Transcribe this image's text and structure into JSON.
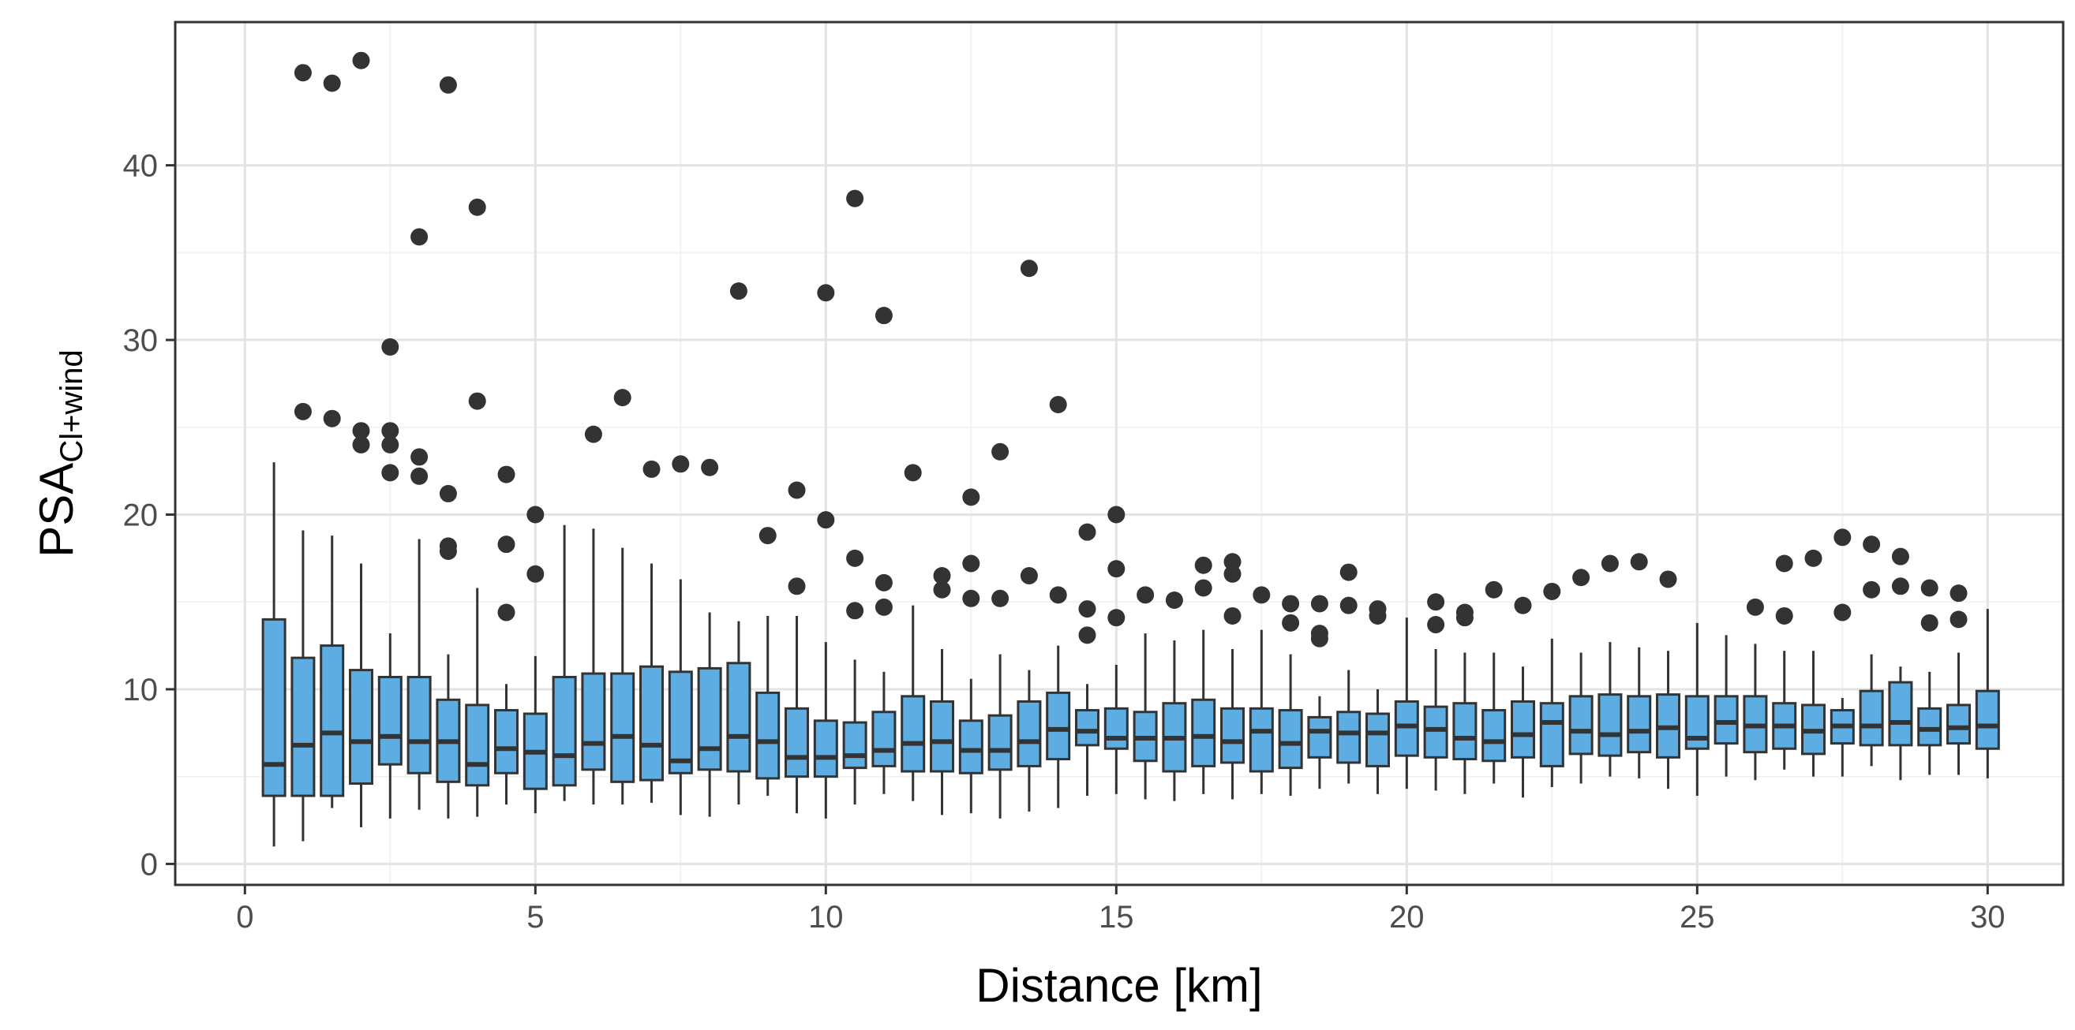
{
  "chart_data": {
    "type": "boxplot",
    "xlabel": "Distance [km]",
    "ylabel_main": "PSA",
    "ylabel_sub": "Cl+wind",
    "xlim": [
      -1.2,
      31.3
    ],
    "ylim": [
      -1.2,
      48.2
    ],
    "x_ticks": [
      0,
      5,
      10,
      15,
      20,
      25,
      30
    ],
    "y_ticks": [
      0,
      10,
      20,
      30,
      40
    ],
    "grid": true,
    "colors": {
      "box_fill": "#5dade2",
      "box_line": "#333333",
      "outlier": "#333333",
      "grid_major": "#e3e3e3",
      "grid_minor": "#f2f2f2",
      "panel_border": "#333333"
    },
    "boxes": [
      {
        "x": 0.5,
        "lo": 1.0,
        "q1": 3.9,
        "med": 5.7,
        "q3": 14.0,
        "hi": 23.0,
        "outliers": []
      },
      {
        "x": 1.0,
        "lo": 1.3,
        "q1": 3.9,
        "med": 6.8,
        "q3": 11.8,
        "hi": 19.1,
        "outliers": [
          45.3,
          25.9
        ]
      },
      {
        "x": 1.5,
        "lo": 3.2,
        "q1": 3.9,
        "med": 7.5,
        "q3": 12.5,
        "hi": 18.8,
        "outliers": [
          44.7,
          25.5
        ]
      },
      {
        "x": 2.0,
        "lo": 2.1,
        "q1": 4.6,
        "med": 7.0,
        "q3": 11.1,
        "hi": 17.2,
        "outliers": [
          46.0,
          24.8,
          24.0
        ]
      },
      {
        "x": 2.5,
        "lo": 2.6,
        "q1": 5.7,
        "med": 7.3,
        "q3": 10.7,
        "hi": 13.2,
        "outliers": [
          29.6,
          24.8,
          24.0,
          22.4
        ]
      },
      {
        "x": 3.0,
        "lo": 3.1,
        "q1": 5.2,
        "med": 7.0,
        "q3": 10.7,
        "hi": 18.6,
        "outliers": [
          35.9,
          23.3,
          22.2
        ]
      },
      {
        "x": 3.5,
        "lo": 2.6,
        "q1": 4.7,
        "med": 7.0,
        "q3": 9.4,
        "hi": 12.0,
        "outliers": [
          44.6,
          21.2,
          18.2,
          17.9
        ]
      },
      {
        "x": 4.0,
        "lo": 2.7,
        "q1": 4.5,
        "med": 5.7,
        "q3": 9.1,
        "hi": 15.8,
        "outliers": [
          37.6,
          26.5
        ]
      },
      {
        "x": 4.5,
        "lo": 3.4,
        "q1": 5.2,
        "med": 6.6,
        "q3": 8.8,
        "hi": 10.3,
        "outliers": [
          22.3,
          18.3,
          14.4
        ]
      },
      {
        "x": 5.0,
        "lo": 2.9,
        "q1": 4.3,
        "med": 6.4,
        "q3": 8.6,
        "hi": 11.9,
        "outliers": [
          20.0,
          16.6
        ]
      },
      {
        "x": 5.5,
        "lo": 3.6,
        "q1": 4.5,
        "med": 6.2,
        "q3": 10.7,
        "hi": 19.4,
        "outliers": []
      },
      {
        "x": 6.0,
        "lo": 3.4,
        "q1": 5.4,
        "med": 6.9,
        "q3": 10.9,
        "hi": 19.2,
        "outliers": [
          24.6
        ]
      },
      {
        "x": 6.5,
        "lo": 3.4,
        "q1": 4.7,
        "med": 7.3,
        "q3": 10.9,
        "hi": 18.1,
        "outliers": [
          26.7
        ]
      },
      {
        "x": 7.0,
        "lo": 3.5,
        "q1": 4.8,
        "med": 6.8,
        "q3": 11.3,
        "hi": 17.2,
        "outliers": [
          22.6
        ]
      },
      {
        "x": 7.5,
        "lo": 2.8,
        "q1": 5.2,
        "med": 5.9,
        "q3": 11.0,
        "hi": 16.3,
        "outliers": [
          22.9
        ]
      },
      {
        "x": 8.0,
        "lo": 2.7,
        "q1": 5.4,
        "med": 6.6,
        "q3": 11.2,
        "hi": 14.4,
        "outliers": [
          22.7
        ]
      },
      {
        "x": 8.5,
        "lo": 3.4,
        "q1": 5.3,
        "med": 7.3,
        "q3": 11.5,
        "hi": 13.9,
        "outliers": [
          32.8
        ]
      },
      {
        "x": 9.0,
        "lo": 3.9,
        "q1": 4.9,
        "med": 7.0,
        "q3": 9.8,
        "hi": 14.2,
        "outliers": [
          18.8
        ]
      },
      {
        "x": 9.5,
        "lo": 2.9,
        "q1": 5.0,
        "med": 6.1,
        "q3": 8.9,
        "hi": 14.2,
        "outliers": [
          21.4,
          15.9
        ]
      },
      {
        "x": 10.0,
        "lo": 2.6,
        "q1": 5.0,
        "med": 6.1,
        "q3": 8.2,
        "hi": 12.7,
        "outliers": [
          32.7,
          19.7
        ]
      },
      {
        "x": 10.5,
        "lo": 3.4,
        "q1": 5.5,
        "med": 6.2,
        "q3": 8.1,
        "hi": 11.7,
        "outliers": [
          38.1,
          17.5,
          14.5
        ]
      },
      {
        "x": 11.0,
        "lo": 4.0,
        "q1": 5.6,
        "med": 6.5,
        "q3": 8.7,
        "hi": 11.0,
        "outliers": [
          31.4,
          16.1,
          14.7
        ]
      },
      {
        "x": 11.5,
        "lo": 3.6,
        "q1": 5.3,
        "med": 6.9,
        "q3": 9.6,
        "hi": 14.8,
        "outliers": [
          22.4
        ]
      },
      {
        "x": 12.0,
        "lo": 2.8,
        "q1": 5.3,
        "med": 7.0,
        "q3": 9.3,
        "hi": 12.3,
        "outliers": [
          16.5,
          15.7
        ]
      },
      {
        "x": 12.5,
        "lo": 2.9,
        "q1": 5.2,
        "med": 6.5,
        "q3": 8.2,
        "hi": 10.6,
        "outliers": [
          21.0,
          17.2,
          15.2
        ]
      },
      {
        "x": 13.0,
        "lo": 2.6,
        "q1": 5.4,
        "med": 6.5,
        "q3": 8.5,
        "hi": 12.0,
        "outliers": [
          23.6,
          15.2
        ]
      },
      {
        "x": 13.5,
        "lo": 3.0,
        "q1": 5.6,
        "med": 7.0,
        "q3": 9.3,
        "hi": 11.1,
        "outliers": [
          34.1,
          16.5
        ]
      },
      {
        "x": 14.0,
        "lo": 3.2,
        "q1": 6.0,
        "med": 7.7,
        "q3": 9.8,
        "hi": 12.5,
        "outliers": [
          26.3,
          15.4
        ]
      },
      {
        "x": 14.5,
        "lo": 3.9,
        "q1": 6.8,
        "med": 7.6,
        "q3": 8.8,
        "hi": 10.3,
        "outliers": [
          19.0,
          14.6,
          13.1
        ]
      },
      {
        "x": 15.0,
        "lo": 4.0,
        "q1": 6.6,
        "med": 7.2,
        "q3": 8.9,
        "hi": 11.4,
        "outliers": [
          20.0,
          16.9,
          14.1
        ]
      },
      {
        "x": 15.5,
        "lo": 3.7,
        "q1": 5.9,
        "med": 7.2,
        "q3": 8.7,
        "hi": 13.2,
        "outliers": [
          15.4
        ]
      },
      {
        "x": 16.0,
        "lo": 3.6,
        "q1": 5.3,
        "med": 7.2,
        "q3": 9.2,
        "hi": 12.8,
        "outliers": [
          15.1
        ]
      },
      {
        "x": 16.5,
        "lo": 4.0,
        "q1": 5.6,
        "med": 7.3,
        "q3": 9.4,
        "hi": 13.4,
        "outliers": [
          17.1,
          15.8
        ]
      },
      {
        "x": 17.0,
        "lo": 3.7,
        "q1": 5.8,
        "med": 7.0,
        "q3": 8.9,
        "hi": 12.3,
        "outliers": [
          17.3,
          16.6,
          14.2
        ]
      },
      {
        "x": 17.5,
        "lo": 4.0,
        "q1": 5.3,
        "med": 7.6,
        "q3": 8.9,
        "hi": 13.4,
        "outliers": [
          15.4
        ]
      },
      {
        "x": 18.0,
        "lo": 3.9,
        "q1": 5.5,
        "med": 6.9,
        "q3": 8.8,
        "hi": 12.0,
        "outliers": [
          14.9,
          13.8
        ]
      },
      {
        "x": 18.5,
        "lo": 4.3,
        "q1": 6.1,
        "med": 7.6,
        "q3": 8.4,
        "hi": 9.6,
        "outliers": [
          14.9,
          13.2,
          12.9
        ]
      },
      {
        "x": 19.0,
        "lo": 4.6,
        "q1": 5.8,
        "med": 7.5,
        "q3": 8.7,
        "hi": 11.1,
        "outliers": [
          16.7,
          14.8
        ]
      },
      {
        "x": 19.5,
        "lo": 4.0,
        "q1": 5.6,
        "med": 7.5,
        "q3": 8.6,
        "hi": 10.0,
        "outliers": [
          14.6,
          14.2
        ]
      },
      {
        "x": 20.0,
        "lo": 4.3,
        "q1": 6.2,
        "med": 7.9,
        "q3": 9.3,
        "hi": 14.1,
        "outliers": []
      },
      {
        "x": 20.5,
        "lo": 4.2,
        "q1": 6.1,
        "med": 7.7,
        "q3": 9.0,
        "hi": 12.3,
        "outliers": [
          15.0,
          13.7
        ]
      },
      {
        "x": 21.0,
        "lo": 4.0,
        "q1": 6.0,
        "med": 7.2,
        "q3": 9.2,
        "hi": 12.1,
        "outliers": [
          14.4,
          14.1
        ]
      },
      {
        "x": 21.5,
        "lo": 4.6,
        "q1": 5.9,
        "med": 7.0,
        "q3": 8.8,
        "hi": 12.1,
        "outliers": [
          15.7
        ]
      },
      {
        "x": 22.0,
        "lo": 3.8,
        "q1": 6.1,
        "med": 7.4,
        "q3": 9.3,
        "hi": 11.3,
        "outliers": [
          14.8
        ]
      },
      {
        "x": 22.5,
        "lo": 4.4,
        "q1": 5.6,
        "med": 8.1,
        "q3": 9.2,
        "hi": 12.9,
        "outliers": [
          15.6
        ]
      },
      {
        "x": 23.0,
        "lo": 4.6,
        "q1": 6.3,
        "med": 7.6,
        "q3": 9.6,
        "hi": 12.1,
        "outliers": [
          16.4
        ]
      },
      {
        "x": 23.5,
        "lo": 5.0,
        "q1": 6.2,
        "med": 7.4,
        "q3": 9.7,
        "hi": 12.7,
        "outliers": [
          17.2
        ]
      },
      {
        "x": 24.0,
        "lo": 4.9,
        "q1": 6.4,
        "med": 7.6,
        "q3": 9.6,
        "hi": 12.4,
        "outliers": [
          17.3
        ]
      },
      {
        "x": 24.5,
        "lo": 4.3,
        "q1": 6.1,
        "med": 7.8,
        "q3": 9.7,
        "hi": 12.2,
        "outliers": [
          16.3
        ]
      },
      {
        "x": 25.0,
        "lo": 3.9,
        "q1": 6.6,
        "med": 7.2,
        "q3": 9.6,
        "hi": 13.8,
        "outliers": []
      },
      {
        "x": 25.5,
        "lo": 5.0,
        "q1": 6.9,
        "med": 8.1,
        "q3": 9.6,
        "hi": 13.1,
        "outliers": []
      },
      {
        "x": 26.0,
        "lo": 4.8,
        "q1": 6.4,
        "med": 7.9,
        "q3": 9.6,
        "hi": 12.6,
        "outliers": [
          14.7
        ]
      },
      {
        "x": 26.5,
        "lo": 5.4,
        "q1": 6.6,
        "med": 7.9,
        "q3": 9.2,
        "hi": 12.2,
        "outliers": [
          17.2,
          14.2
        ]
      },
      {
        "x": 27.0,
        "lo": 5.0,
        "q1": 6.3,
        "med": 7.6,
        "q3": 9.1,
        "hi": 12.2,
        "outliers": [
          17.5
        ]
      },
      {
        "x": 27.5,
        "lo": 5.0,
        "q1": 6.9,
        "med": 7.9,
        "q3": 8.8,
        "hi": 9.5,
        "outliers": [
          18.7,
          14.4
        ]
      },
      {
        "x": 28.0,
        "lo": 5.6,
        "q1": 6.8,
        "med": 7.9,
        "q3": 9.9,
        "hi": 12.0,
        "outliers": [
          18.3,
          15.7
        ]
      },
      {
        "x": 28.5,
        "lo": 4.8,
        "q1": 6.8,
        "med": 8.1,
        "q3": 10.4,
        "hi": 11.3,
        "outliers": [
          17.6,
          15.9
        ]
      },
      {
        "x": 29.0,
        "lo": 5.1,
        "q1": 6.8,
        "med": 7.7,
        "q3": 8.9,
        "hi": 11.0,
        "outliers": [
          15.8,
          13.8
        ]
      },
      {
        "x": 29.5,
        "lo": 5.1,
        "q1": 6.9,
        "med": 7.8,
        "q3": 9.1,
        "hi": 12.1,
        "outliers": [
          15.5,
          14.0
        ]
      },
      {
        "x": 30.0,
        "lo": 4.9,
        "q1": 6.6,
        "med": 7.9,
        "q3": 9.9,
        "hi": 14.6,
        "outliers": []
      }
    ]
  }
}
